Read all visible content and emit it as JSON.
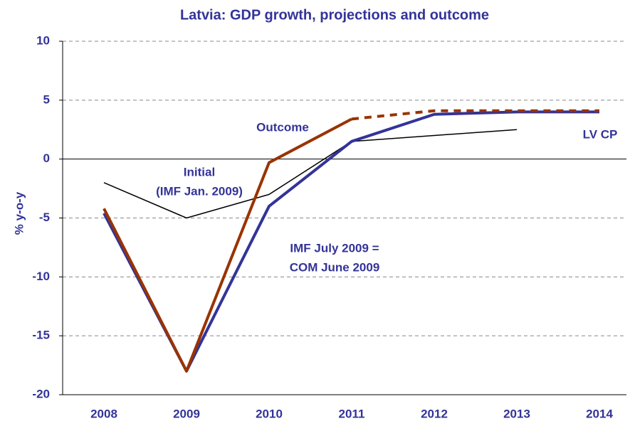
{
  "chart_data": {
    "type": "line",
    "title": "Latvia: GDP growth, projections and outcome",
    "y_label": "% y-o-y",
    "categories": [
      "2008",
      "2009",
      "2010",
      "2011",
      "2012",
      "2013",
      "2014"
    ],
    "ylim": [
      -20,
      10
    ],
    "yticks": [
      -20,
      -15,
      -10,
      -5,
      0,
      5,
      10
    ],
    "grid": true,
    "series": [
      {
        "label": [
          "Initial",
          "(IMF Jan. 2009)"
        ],
        "color": "#000000",
        "width": 1.5,
        "dashed": false,
        "values": [
          -2,
          -5,
          -3,
          1.5,
          2.0,
          2.5,
          null
        ]
      },
      {
        "label": [
          "IMF July 2009 =",
          "COM June 2009"
        ],
        "color": "#333399",
        "width": 4,
        "dashed": false,
        "values": [
          -4.6,
          -18,
          -4,
          1.5,
          3.8,
          4.0,
          4.0
        ]
      },
      {
        "label": [
          "Outcome"
        ],
        "color": "#993300",
        "width": 4,
        "dashed": false,
        "values": [
          -4.2,
          -18,
          -0.3,
          3.4,
          null,
          null,
          null
        ]
      },
      {
        "label": [
          "LV CP"
        ],
        "color": "#993300",
        "width": 4,
        "dashed": true,
        "values": [
          null,
          null,
          null,
          3.4,
          4.1,
          4.1,
          4.1
        ]
      }
    ]
  }
}
